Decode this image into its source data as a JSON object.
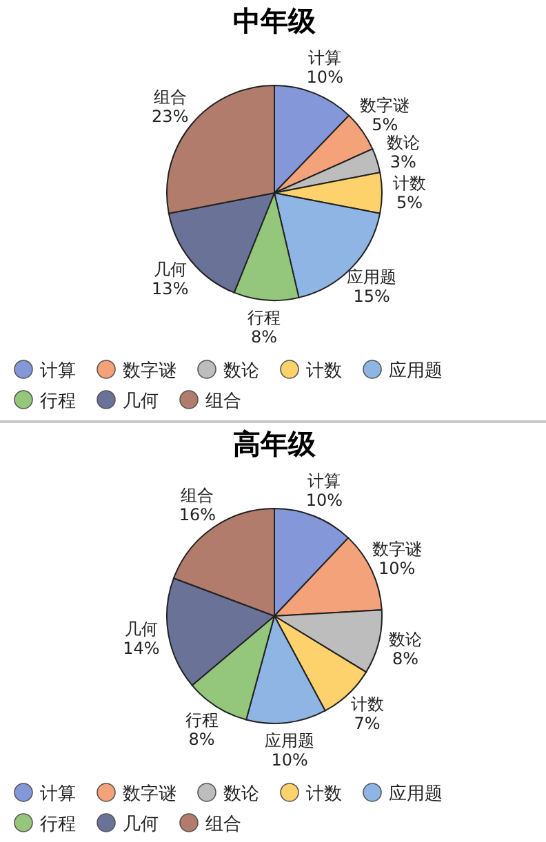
{
  "chart_data": [
    {
      "type": "pie",
      "title": "中年级",
      "categories": [
        "计算",
        "数字谜",
        "数论",
        "计数",
        "应用题",
        "行程",
        "几何",
        "组合"
      ],
      "values": [
        10,
        5,
        3,
        5,
        15,
        8,
        13,
        23
      ],
      "value_labels": [
        "10%",
        "5%",
        "3%",
        "5%",
        "15%",
        "8%",
        "13%",
        "23%"
      ],
      "colors": [
        "#8497d9",
        "#f4a27a",
        "#bdbdbd",
        "#fdd16b",
        "#8fb5e4",
        "#94c77b",
        "#6a7298",
        "#b17c6b"
      ],
      "legend": "bottom"
    },
    {
      "type": "pie",
      "title": "高年级",
      "categories": [
        "计算",
        "数字谜",
        "数论",
        "计数",
        "应用题",
        "行程",
        "几何",
        "组合"
      ],
      "values": [
        10,
        10,
        8,
        7,
        10,
        8,
        14,
        16
      ],
      "value_labels": [
        "10%",
        "10%",
        "8%",
        "7%",
        "10%",
        "8%",
        "14%",
        "16%"
      ],
      "colors": [
        "#8497d9",
        "#f4a27a",
        "#bdbdbd",
        "#fdd16b",
        "#8fb5e4",
        "#94c77b",
        "#6a7298",
        "#b17c6b"
      ],
      "legend": "bottom"
    }
  ]
}
